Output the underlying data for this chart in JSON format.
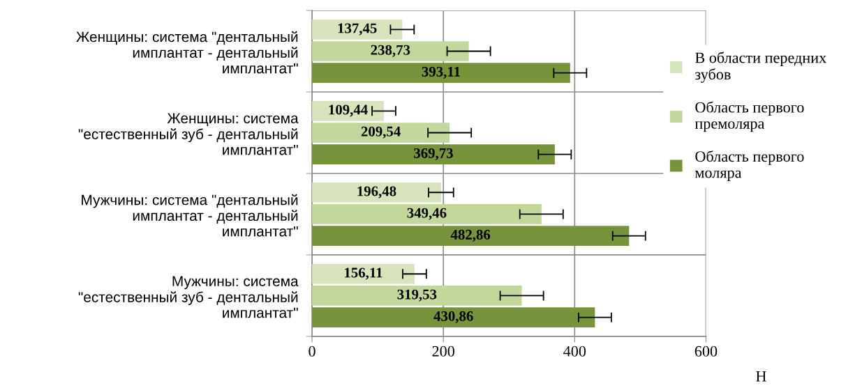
{
  "chart_data": {
    "type": "bar",
    "orientation": "horizontal",
    "xlabel": "Н",
    "categories": [
      "Женщины: система \"дентальный\nимплантат - дентальный\nимплантат\"",
      "Женщины: система\n\"естественный зуб - дентальный\nимплантат\"",
      "Мужчины: система \"дентальный\nимплантат - дентальный\nимплантат\"",
      "Мужчины: система\n\"естественный зуб - дентальный\nимплантат\""
    ],
    "series": [
      {
        "name": "В области передних\nзубов",
        "color": "#d7e4bd",
        "values": [
          137.45,
          109.44,
          196.48,
          156.11
        ],
        "value_labels": [
          "137,45",
          "109,44",
          "196,48",
          "156,11"
        ],
        "errors": [
          18,
          18,
          19,
          18
        ]
      },
      {
        "name": "Область первого\nпремоляра",
        "color": "#c3d69b",
        "values": [
          238.73,
          209.54,
          349.46,
          319.53
        ],
        "value_labels": [
          "238,73",
          "209,54",
          "349,46",
          "319,53"
        ],
        "errors": [
          33,
          33,
          33,
          33
        ]
      },
      {
        "name": "Область первого\nмоляра",
        "color": "#77933c",
        "values": [
          393.11,
          369.73,
          482.86,
          430.86
        ],
        "value_labels": [
          "393,11",
          "369,73",
          "482,86",
          "430,86"
        ],
        "errors": [
          25,
          25,
          25,
          25
        ]
      }
    ],
    "xlim": [
      0,
      600
    ],
    "xticks": [
      0,
      200,
      400,
      600
    ],
    "grid": true,
    "legend": "right"
  }
}
